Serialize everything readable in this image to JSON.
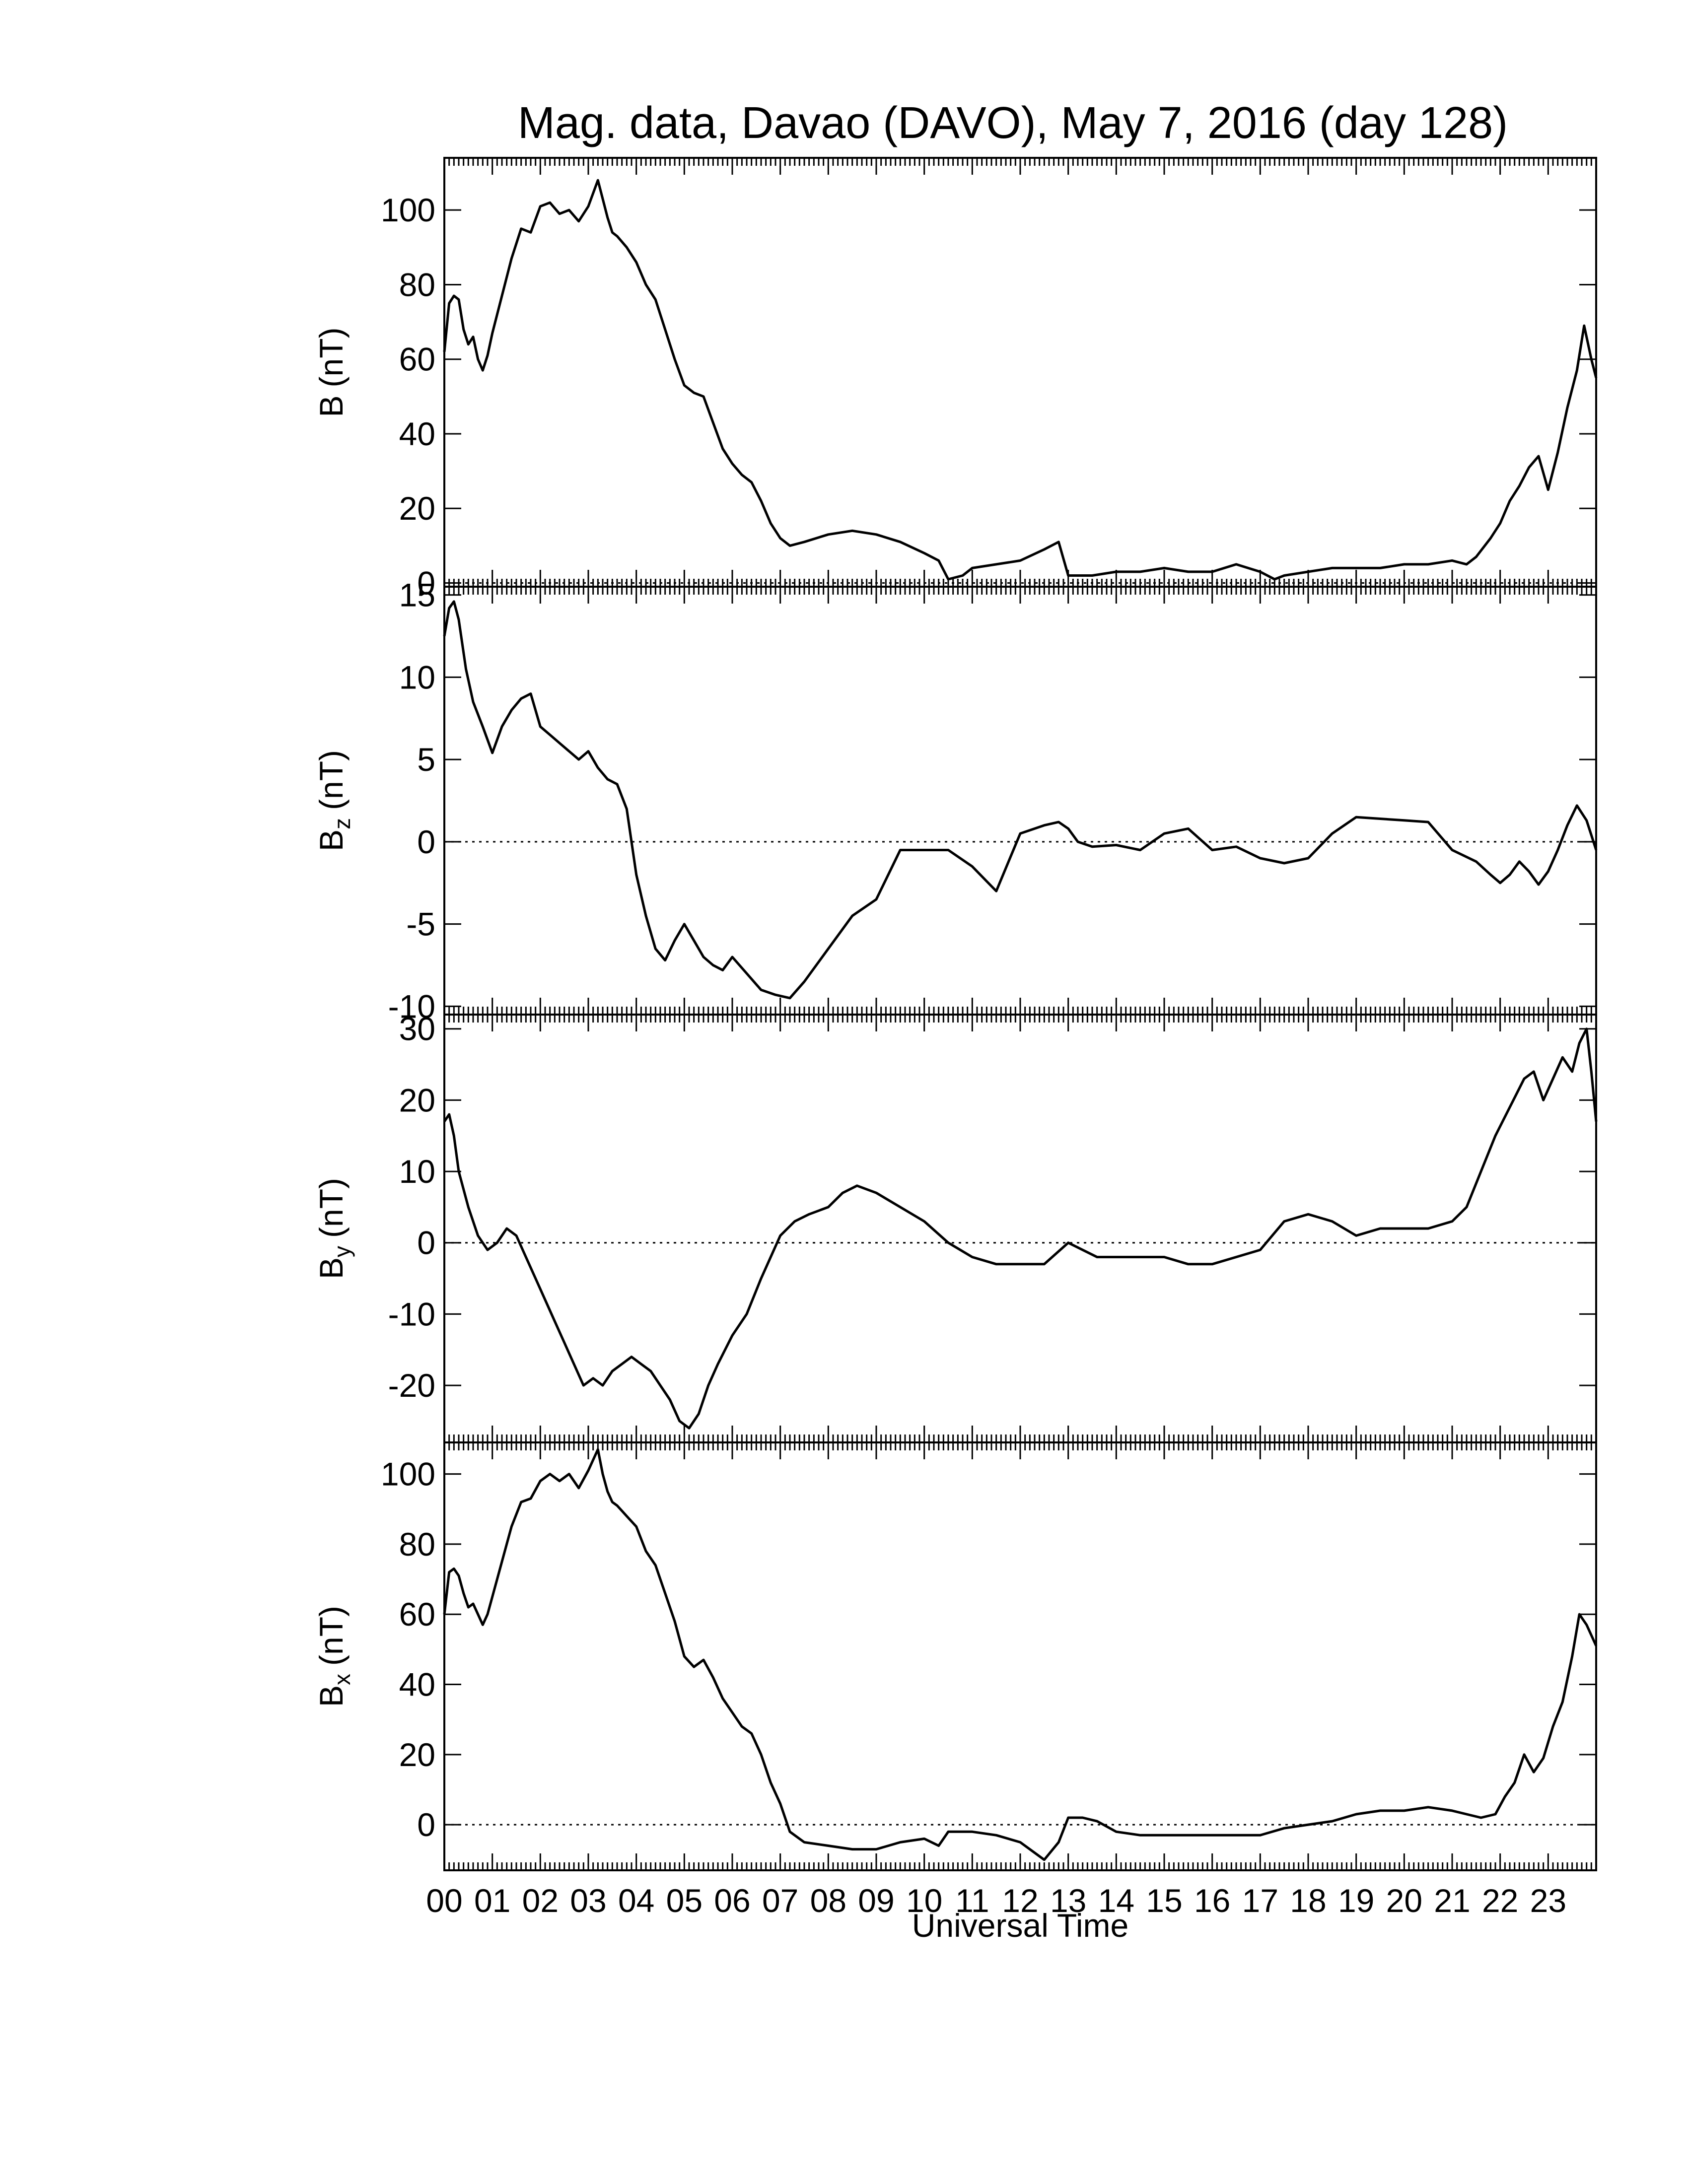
{
  "chart_data": {
    "type": "line",
    "title": "Mag. data, Davao (DAVO), May 7, 2016 (day 128)",
    "xlabel": "Universal Time",
    "x_unit": "hours UT",
    "xlim": [
      0,
      24
    ],
    "x_tick_labels": [
      "00",
      "01",
      "02",
      "03",
      "04",
      "05",
      "06",
      "07",
      "08",
      "09",
      "10",
      "11",
      "12",
      "13",
      "14",
      "15",
      "16",
      "17",
      "18",
      "19",
      "20",
      "21",
      "22",
      "23"
    ],
    "grid": false,
    "zero_reference_line": "dotted",
    "panels": [
      {
        "id": "B",
        "ylabel_main": "B",
        "ylabel_sub": "",
        "ylabel_unit": "(nT)",
        "ylim": [
          -1,
          114
        ],
        "yticks": [
          0,
          20,
          40,
          60,
          80,
          100
        ],
        "series": [
          {
            "x": [
              0,
              0.1,
              0.2,
              0.3,
              0.4,
              0.5,
              0.6,
              0.7,
              0.8,
              0.9,
              1.0,
              1.2,
              1.4,
              1.6,
              1.8,
              2.0,
              2.2,
              2.4,
              2.6,
              2.8,
              3.0,
              3.2,
              3.3,
              3.4,
              3.5,
              3.6,
              3.8,
              4.0,
              4.2,
              4.4,
              4.6,
              4.8,
              5.0,
              5.2,
              5.4,
              5.6,
              5.8,
              6.0,
              6.2,
              6.4,
              6.6,
              6.8,
              7.0,
              7.2,
              7.5,
              8.0,
              8.5,
              9.0,
              9.5,
              10.0,
              10.3,
              10.5,
              10.8,
              11.0,
              11.5,
              12.0,
              12.5,
              12.8,
              13.0,
              13.5,
              14.0,
              14.5,
              15.0,
              15.5,
              16.0,
              16.5,
              17.0,
              17.3,
              17.5,
              18.0,
              18.5,
              19.0,
              19.5,
              20.0,
              20.5,
              21.0,
              21.3,
              21.5,
              21.8,
              22.0,
              22.2,
              22.4,
              22.6,
              22.8,
              23.0,
              23.2,
              23.4,
              23.6,
              23.75,
              23.9,
              24.0
            ],
            "values": [
              62,
              75,
              77,
              76,
              68,
              64,
              66,
              60,
              57,
              61,
              67,
              77,
              87,
              95,
              94,
              101,
              102,
              99,
              100,
              97,
              101,
              108,
              103,
              98,
              94,
              93,
              90,
              86,
              80,
              76,
              68,
              60,
              53,
              51,
              50,
              43,
              36,
              32,
              29,
              27,
              22,
              16,
              12,
              10,
              11,
              13,
              14,
              13,
              11,
              8,
              6,
              1,
              2,
              4,
              5,
              6,
              9,
              11,
              2,
              2,
              3,
              3,
              4,
              3,
              3,
              5,
              3,
              1,
              2,
              3,
              4,
              4,
              4,
              5,
              5,
              6,
              5,
              7,
              12,
              16,
              22,
              26,
              31,
              34,
              25,
              35,
              47,
              57,
              69,
              60,
              55
            ]
          }
        ]
      },
      {
        "id": "Bz",
        "ylabel_main": "B",
        "ylabel_sub": "z",
        "ylabel_unit": "(nT)",
        "ylim": [
          -10.5,
          15.5
        ],
        "yticks": [
          -10,
          -5,
          0,
          5,
          10,
          15
        ],
        "series": [
          {
            "x": [
              0,
              0.1,
              0.2,
              0.3,
              0.45,
              0.6,
              0.8,
              1.0,
              1.2,
              1.4,
              1.6,
              1.8,
              2.0,
              2.2,
              2.4,
              2.6,
              2.8,
              3.0,
              3.2,
              3.4,
              3.6,
              3.8,
              4.0,
              4.2,
              4.4,
              4.6,
              4.8,
              5.0,
              5.2,
              5.4,
              5.6,
              5.8,
              6.0,
              6.3,
              6.6,
              6.9,
              7.2,
              7.5,
              8.0,
              8.5,
              9.0,
              9.5,
              10.0,
              10.5,
              11.0,
              11.5,
              12.0,
              12.5,
              12.8,
              13.0,
              13.2,
              13.5,
              14.0,
              14.5,
              15.0,
              15.5,
              16.0,
              16.5,
              17.0,
              17.5,
              18.0,
              18.5,
              19.0,
              19.5,
              20.0,
              20.5,
              21.0,
              21.5,
              21.8,
              22.0,
              22.2,
              22.4,
              22.6,
              22.8,
              23.0,
              23.2,
              23.4,
              23.6,
              23.8,
              24.0
            ],
            "values": [
              12.5,
              14.2,
              14.6,
              13.5,
              10.5,
              8.5,
              7,
              5.4,
              7,
              8,
              8.7,
              9.0,
              7,
              6.5,
              6,
              5.5,
              5,
              5.5,
              4.5,
              3.8,
              3.5,
              2,
              -2,
              -4.5,
              -6.5,
              -7.2,
              -6,
              -5,
              -6,
              -7,
              -7.5,
              -7.8,
              -7,
              -8,
              -9,
              -9.3,
              -9.5,
              -8.5,
              -6.5,
              -4.5,
              -3.5,
              -0.5,
              -0.5,
              -0.5,
              -1.5,
              -3,
              0.5,
              1,
              1.2,
              0.8,
              0,
              -0.3,
              -0.2,
              -0.5,
              0.5,
              0.8,
              -0.5,
              -0.3,
              -1,
              -1.3,
              -1,
              0.5,
              1.5,
              1.4,
              1.3,
              1.2,
              -0.5,
              -1.2,
              -2,
              -2.5,
              -2,
              -1.2,
              -1.8,
              -2.6,
              -1.8,
              -0.5,
              1.0,
              2.2,
              1.3,
              -0.5
            ]
          }
        ]
      },
      {
        "id": "By",
        "ylabel_main": "B",
        "ylabel_sub": "y",
        "ylabel_unit": "(nT)",
        "ylim": [
          -28,
          32
        ],
        "yticks": [
          -20,
          -10,
          0,
          10,
          20,
          30
        ],
        "series": [
          {
            "x": [
              0,
              0.1,
              0.2,
              0.3,
              0.5,
              0.7,
              0.9,
              1.1,
              1.3,
              1.5,
              1.7,
              1.9,
              2.1,
              2.3,
              2.5,
              2.7,
              2.9,
              3.1,
              3.3,
              3.5,
              3.7,
              3.9,
              4.1,
              4.3,
              4.5,
              4.7,
              4.9,
              5.1,
              5.3,
              5.5,
              5.7,
              6.0,
              6.3,
              6.6,
              7.0,
              7.3,
              7.6,
              8.0,
              8.3,
              8.6,
              9.0,
              9.5,
              10.0,
              10.5,
              11.0,
              11.5,
              12.0,
              12.5,
              13.0,
              13.3,
              13.6,
              14.0,
              14.5,
              15.0,
              15.5,
              16.0,
              16.5,
              17.0,
              17.5,
              18.0,
              18.5,
              19.0,
              19.5,
              20.0,
              20.5,
              21.0,
              21.3,
              21.6,
              21.9,
              22.2,
              22.5,
              22.7,
              22.9,
              23.1,
              23.3,
              23.5,
              23.65,
              23.8,
              23.9,
              24.0
            ],
            "values": [
              17,
              18,
              15,
              10,
              5,
              1,
              -1,
              0,
              2,
              1,
              -2,
              -5,
              -8,
              -11,
              -14,
              -17,
              -20,
              -19,
              -20,
              -18,
              -17,
              -16,
              -17,
              -18,
              -20,
              -22,
              -25,
              -26,
              -24,
              -20,
              -17,
              -13,
              -10,
              -5,
              1,
              3,
              4,
              5,
              7,
              8,
              7,
              5,
              3,
              0,
              -2,
              -3,
              -3,
              -3,
              0,
              -1,
              -2,
              -2,
              -2,
              -2,
              -3,
              -3,
              -2,
              -1,
              3,
              4,
              3,
              1,
              2,
              2,
              2,
              3,
              5,
              10,
              15,
              19,
              23,
              24,
              20,
              23,
              26,
              24,
              28,
              30,
              24,
              17
            ]
          }
        ]
      },
      {
        "id": "Bx",
        "ylabel_main": "B",
        "ylabel_sub": "x",
        "ylabel_unit": "(nT)",
        "ylim": [
          -13,
          109
        ],
        "yticks": [
          0,
          20,
          40,
          60,
          80,
          100
        ],
        "series": [
          {
            "x": [
              0,
              0.1,
              0.2,
              0.3,
              0.4,
              0.5,
              0.6,
              0.7,
              0.8,
              0.9,
              1.0,
              1.2,
              1.4,
              1.6,
              1.8,
              2.0,
              2.2,
              2.4,
              2.6,
              2.8,
              3.0,
              3.2,
              3.3,
              3.4,
              3.5,
              3.6,
              3.8,
              4.0,
              4.2,
              4.4,
              4.6,
              4.8,
              5.0,
              5.2,
              5.4,
              5.6,
              5.8,
              6.0,
              6.2,
              6.4,
              6.6,
              6.8,
              7.0,
              7.2,
              7.5,
              8.0,
              8.5,
              9.0,
              9.5,
              10.0,
              10.3,
              10.5,
              11.0,
              11.5,
              12.0,
              12.3,
              12.5,
              12.8,
              13.0,
              13.3,
              13.6,
              14.0,
              14.5,
              15.0,
              15.5,
              16.0,
              16.5,
              17.0,
              17.5,
              18.0,
              18.5,
              19.0,
              19.5,
              20.0,
              20.5,
              21.0,
              21.3,
              21.6,
              21.9,
              22.1,
              22.3,
              22.5,
              22.7,
              22.9,
              23.1,
              23.3,
              23.5,
              23.65,
              23.8,
              24.0
            ],
            "values": [
              60,
              72,
              73,
              71,
              66,
              62,
              63,
              60,
              57,
              60,
              65,
              75,
              85,
              92,
              93,
              98,
              100,
              98,
              100,
              96,
              101,
              107,
              100,
              95,
              92,
              91,
              88,
              85,
              78,
              74,
              66,
              58,
              48,
              45,
              47,
              42,
              36,
              32,
              28,
              26,
              20,
              12,
              6,
              -2,
              -5,
              -6,
              -7,
              -7,
              -5,
              -4,
              -6,
              -2,
              -2,
              -3,
              -5,
              -8,
              -10,
              -5,
              2,
              2,
              1,
              -2,
              -3,
              -3,
              -3,
              -3,
              -3,
              -3,
              -1,
              0,
              1,
              3,
              4,
              4,
              5,
              4,
              3,
              2,
              3,
              8,
              12,
              20,
              15,
              19,
              28,
              35,
              48,
              60,
              57,
              51
            ]
          }
        ]
      }
    ]
  }
}
